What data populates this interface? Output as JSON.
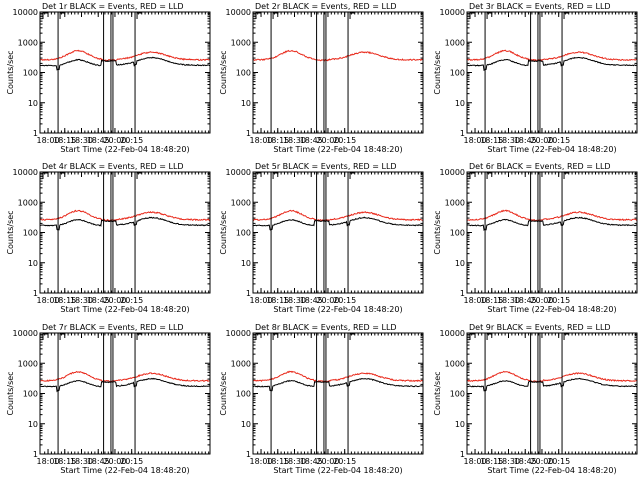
{
  "figure": {
    "start_time_label": "Start Time (22-Feb-04 18:48:20)",
    "ylabel": "Counts/sec"
  },
  "chart_data": [
    {
      "type": "line",
      "title": "Det 1r BLACK = Events, RED = LLD",
      "xlabel": "Start Time (22-Feb-04 18:48:20)",
      "ylabel": "Counts/sec",
      "yscale": "log",
      "ylim": [
        1,
        10000
      ],
      "xlim": [
        17.88,
        20.42
      ],
      "yticks": [
        "1",
        "10",
        "100",
        "1000",
        "10000"
      ],
      "xticks": [
        "18:00",
        "18:15",
        "18:30",
        "18:45",
        "20:00",
        "20:15"
      ],
      "events_on": true,
      "colors": {
        "events": "#000000",
        "lld": "#e8281a"
      }
    },
    {
      "type": "line",
      "title": "Det 2r BLACK = Events, RED = LLD",
      "xlabel": "Start Time (22-Feb-04 18:48:20)",
      "ylabel": "Counts/sec",
      "yscale": "log",
      "ylim": [
        1,
        10000
      ],
      "xlim": [
        17.88,
        20.42
      ],
      "yticks": [
        "1",
        "10",
        "100",
        "1000",
        "10000"
      ],
      "xticks": [
        "18:00",
        "18:15",
        "18:30",
        "18:45",
        "20:00",
        "20:15"
      ],
      "events_on": false,
      "colors": {
        "events": "#000000",
        "lld": "#e8281a"
      }
    },
    {
      "type": "line",
      "title": "Det 3r BLACK = Events, RED = LLD",
      "xlabel": "Start Time (22-Feb-04 18:48:20)",
      "ylabel": "Counts/sec",
      "yscale": "log",
      "ylim": [
        1,
        10000
      ],
      "xlim": [
        17.88,
        20.42
      ],
      "yticks": [
        "1",
        "10",
        "100",
        "1000",
        "10000"
      ],
      "xticks": [
        "18:00",
        "18:15",
        "18:30",
        "18:45",
        "20:00",
        "20:15"
      ],
      "events_on": true,
      "colors": {
        "events": "#000000",
        "lld": "#e8281a"
      }
    },
    {
      "type": "line",
      "title": "Det 4r BLACK = Events, RED = LLD",
      "xlabel": "Start Time (22-Feb-04 18:48:20)",
      "ylabel": "Counts/sec",
      "yscale": "log",
      "ylim": [
        1,
        10000
      ],
      "xlim": [
        17.88,
        20.42
      ],
      "yticks": [
        "1",
        "10",
        "100",
        "1000",
        "10000"
      ],
      "xticks": [
        "18:00",
        "18:15",
        "18:30",
        "18:45",
        "20:00",
        "20:15"
      ],
      "events_on": true,
      "colors": {
        "events": "#000000",
        "lld": "#e8281a"
      }
    },
    {
      "type": "line",
      "title": "Det 5r BLACK = Events, RED = LLD",
      "xlabel": "Start Time (22-Feb-04 18:48:20)",
      "ylabel": "Counts/sec",
      "yscale": "log",
      "ylim": [
        1,
        10000
      ],
      "xlim": [
        17.88,
        20.42
      ],
      "yticks": [
        "1",
        "10",
        "100",
        "1000",
        "10000"
      ],
      "xticks": [
        "18:00",
        "18:15",
        "18:30",
        "18:45",
        "20:00",
        "20:15"
      ],
      "events_on": true,
      "colors": {
        "events": "#000000",
        "lld": "#e8281a"
      }
    },
    {
      "type": "line",
      "title": "Det 6r BLACK = Events, RED = LLD",
      "xlabel": "Start Time (22-Feb-04 18:48:20)",
      "ylabel": "Counts/sec",
      "yscale": "log",
      "ylim": [
        1,
        10000
      ],
      "xlim": [
        17.88,
        20.42
      ],
      "yticks": [
        "1",
        "10",
        "100",
        "1000",
        "10000"
      ],
      "xticks": [
        "18:00",
        "18:15",
        "18:30",
        "18:45",
        "20:00",
        "20:15"
      ],
      "events_on": true,
      "colors": {
        "events": "#000000",
        "lld": "#e8281a"
      }
    },
    {
      "type": "line",
      "title": "Det 7r BLACK = Events, RED = LLD",
      "xlabel": "Start Time (22-Feb-04 18:48:20)",
      "ylabel": "Counts/sec",
      "yscale": "log",
      "ylim": [
        1,
        10000
      ],
      "xlim": [
        17.88,
        20.42
      ],
      "yticks": [
        "1",
        "10",
        "100",
        "1000",
        "10000"
      ],
      "xticks": [
        "18:00",
        "18:15",
        "18:30",
        "18:45",
        "20:00",
        "20:15"
      ],
      "events_on": true,
      "colors": {
        "events": "#000000",
        "lld": "#e8281a"
      }
    },
    {
      "type": "line",
      "title": "Det 8r BLACK = Events, RED = LLD",
      "xlabel": "Start Time (22-Feb-04 18:48:20)",
      "ylabel": "Counts/sec",
      "yscale": "log",
      "ylim": [
        1,
        10000
      ],
      "xlim": [
        17.88,
        20.42
      ],
      "yticks": [
        "1",
        "10",
        "100",
        "1000",
        "10000"
      ],
      "xticks": [
        "18:00",
        "18:15",
        "18:30",
        "18:45",
        "20:00",
        "20:15"
      ],
      "events_on": true,
      "colors": {
        "events": "#000000",
        "lld": "#e8281a"
      }
    },
    {
      "type": "line",
      "title": "Det 9r BLACK = Events, RED = LLD",
      "xlabel": "Start Time (22-Feb-04 18:48:20)",
      "ylabel": "Counts/sec",
      "yscale": "log",
      "ylim": [
        1,
        10000
      ],
      "xlim": [
        17.88,
        20.42
      ],
      "yticks": [
        "1",
        "10",
        "100",
        "1000",
        "10000"
      ],
      "xticks": [
        "18:00",
        "18:15",
        "18:30",
        "18:45",
        "20:00",
        "20:15"
      ],
      "events_on": true,
      "colors": {
        "events": "#000000",
        "lld": "#e8281a"
      }
    }
  ]
}
